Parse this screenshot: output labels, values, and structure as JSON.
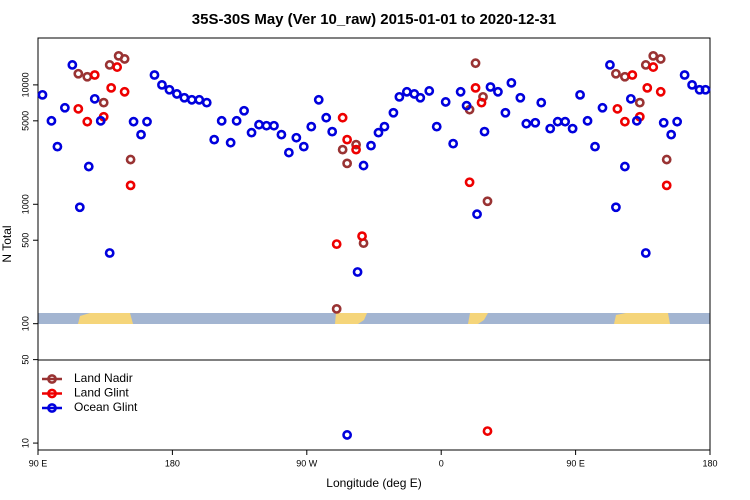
{
  "chart_data": {
    "type": "scatter",
    "title": "35S-30S May (Ver 10_raw)   2015-01-01 to 2020-12-31",
    "xlabel": "Longitude (deg E)",
    "ylabel": "N Total",
    "xlim": [
      -270,
      180
    ],
    "xticks": [
      {
        "value": -270,
        "label": "90 E"
      },
      {
        "value": -180,
        "label": "180"
      },
      {
        "value": -90,
        "label": "90 W"
      },
      0,
      {
        "value": 90,
        "label": "90 E"
      },
      180
    ],
    "ylim": [
      8.75,
      24700
    ],
    "yscale": "log",
    "yticks": [
      10,
      50,
      100,
      500,
      1000,
      5000,
      10000
    ],
    "legend": "lower left",
    "series": [
      {
        "name": "Land Nadir",
        "color": "#993333",
        "x": [
          -243,
          -237,
          -226,
          -222,
          -216,
          -212,
          -208,
          -70,
          -66,
          -63,
          -57,
          -52,
          19,
          23,
          28,
          31,
          117,
          123,
          133,
          137,
          142,
          147,
          151
        ],
        "values": [
          12400,
          11700,
          7100,
          14700,
          17500,
          16500,
          2370,
          133,
          2870,
          2200,
          3160,
          473,
          6200,
          15200,
          7940,
          1060,
          12400,
          11700,
          7100,
          14700,
          17500,
          16500,
          2370
        ]
      },
      {
        "name": "Land Glint",
        "color": "#ee0000",
        "x": [
          -243,
          -237,
          -232,
          -226,
          -221,
          -217,
          -212,
          -208,
          -70,
          -66,
          -63,
          -57,
          -53,
          19,
          23,
          27,
          31,
          118,
          123,
          128,
          133,
          138,
          142,
          147,
          151
        ],
        "values": [
          6300,
          4920,
          12100,
          5410,
          9440,
          14100,
          8750,
          1440,
          464,
          5310,
          3480,
          2870,
          541,
          1530,
          9440,
          7100,
          12.6,
          6300,
          4920,
          12100,
          5410,
          9440,
          14100,
          8750,
          1440
        ]
      },
      {
        "name": "Ocean Glint",
        "color": "#0000dd",
        "x": [
          -267,
          -261,
          -257,
          -252,
          -247,
          -242,
          -236,
          -232,
          -228,
          -222,
          -206,
          -201,
          -197,
          -192,
          -187,
          -182,
          -177,
          -172,
          -167,
          -162,
          -157,
          -152,
          -147,
          -141,
          -137,
          -132,
          -127,
          -122,
          -117,
          -112,
          -107,
          -102,
          -97,
          -92,
          -87,
          -82,
          -77,
          -73,
          -63,
          -56,
          -52,
          -47,
          -42,
          -38,
          -32,
          -28,
          -23,
          -18,
          -14,
          -8,
          -3,
          3,
          8,
          13,
          17,
          24,
          29,
          33,
          38,
          43,
          47,
          53,
          57,
          63,
          67,
          73,
          78,
          83,
          88,
          93,
          98,
          103,
          108,
          113,
          117,
          123,
          127,
          131,
          137,
          149,
          154,
          158,
          163,
          168,
          173,
          177
        ],
        "values": [
          8250,
          5000,
          3040,
          6430,
          14700,
          944,
          2070,
          7640,
          5000,
          391,
          4920,
          3830,
          4920,
          12100,
          10000,
          9100,
          8400,
          7800,
          7500,
          7500,
          7100,
          3480,
          5000,
          3280,
          5000,
          6070,
          3980,
          4640,
          4550,
          4550,
          3830,
          2710,
          3610,
          3040,
          4470,
          7500,
          5310,
          4060,
          11.7,
          271,
          2110,
          3100,
          3980,
          4470,
          5840,
          7940,
          8750,
          8400,
          7800,
          8900,
          4470,
          7200,
          3220,
          8750,
          6700,
          826,
          4060,
          9600,
          8750,
          5840,
          10400,
          7800,
          4730,
          4820,
          7100,
          4300,
          4920,
          4920,
          4300,
          8250,
          5000,
          3040,
          6430,
          14700,
          944,
          2070,
          7640,
          5000,
          391,
          4820,
          3830,
          4920,
          12100,
          10000,
          9100,
          9100
        ]
      }
    ]
  }
}
